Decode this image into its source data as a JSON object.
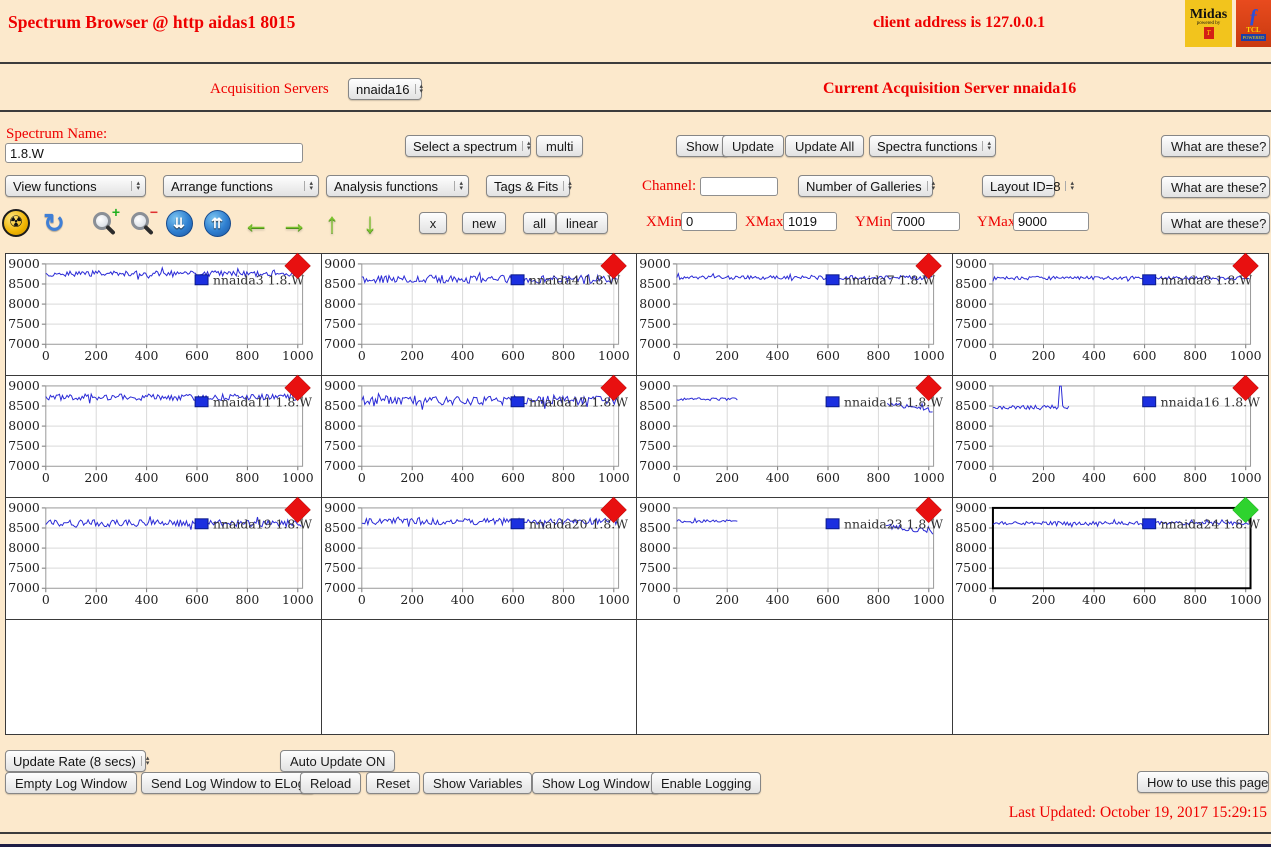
{
  "page": {
    "background": "#fce9cc",
    "accent_red": "#ee0000"
  },
  "header": {
    "title": "Spectrum Browser @ http aidas1 8015",
    "client_address": "client address is 127.0.0.1",
    "logos": {
      "midas_name": "Midas",
      "midas_sub": "powered by",
      "midas_badge": "T",
      "tcl_feather": "ƒ",
      "tcl_name": "TCL",
      "tcl_sub": "POWERED"
    }
  },
  "server_bar": {
    "label": "Acquisition Servers",
    "select_value": "nnaida16",
    "current": "Current Acquisition Server nnaida16"
  },
  "spectrum_bar": {
    "name_label": "Spectrum Name:",
    "name_value": "1.8.W",
    "select_spectrum": "Select a spectrum",
    "multi": "multi",
    "show": "Show",
    "update": "Update",
    "update_all": "Update All",
    "spectra_functions": "Spectra functions",
    "help": "What are these?"
  },
  "function_bar": {
    "view": "View functions",
    "arrange": "Arrange functions",
    "analysis": "Analysis functions",
    "tags": "Tags & Fits",
    "channel_label": "Channel:",
    "channel_value": "",
    "galleries": "Number of Galleries",
    "layout": "Layout ID=8",
    "help": "What are these?"
  },
  "toolbar": {
    "icons": [
      {
        "name": "radiation-icon",
        "glyph": "☢"
      },
      {
        "name": "refresh-icon",
        "glyph": "↻"
      },
      {
        "name": "zoom-in-icon",
        "badge": "+"
      },
      {
        "name": "zoom-out-icon",
        "badge": "−"
      },
      {
        "name": "scroll-down-icon",
        "glyph": "⇊"
      },
      {
        "name": "scroll-up-icon",
        "glyph": "⇈"
      },
      {
        "name": "arrow-left-icon",
        "glyph": "←"
      },
      {
        "name": "arrow-right-icon",
        "glyph": "→"
      },
      {
        "name": "arrow-up-icon",
        "glyph": "↑"
      },
      {
        "name": "arrow-down-icon",
        "glyph": "↓"
      }
    ],
    "x": "x",
    "new": "new",
    "all": "all",
    "linear": "linear",
    "xmin_label": "XMin",
    "xmin": "0",
    "xmax_label": "XMax",
    "xmax": "1019",
    "ymin_label": "YMin",
    "ymin": "7000",
    "ymax_label": "YMax",
    "ymax": "9000",
    "help": "What are these?"
  },
  "chart_data": {
    "type": "line",
    "xlim": [
      0,
      1019
    ],
    "ylim": [
      7000,
      9000
    ],
    "xticks": [
      0,
      200,
      400,
      600,
      800,
      1000
    ],
    "yticks": [
      9000,
      8500,
      8000,
      7500,
      7000
    ],
    "grid": true,
    "line_color": "#2b2bd6",
    "legend_marker_fill": "#1b2fe0",
    "legend_marker_stroke": "#0b1a8a",
    "diamond_red": "#e81010",
    "diamond_green": "#2ed32e",
    "plots": [
      {
        "name": "nnaida3 1.8.W",
        "status": "red",
        "selected": false,
        "seed": 3,
        "segments": [
          {
            "x0": 0,
            "x1": 1019,
            "base": 8760,
            "amp": 70
          }
        ]
      },
      {
        "name": "nnaida4 1.8.W",
        "status": "red",
        "selected": false,
        "seed": 4,
        "segments": [
          {
            "x0": 0,
            "x1": 1019,
            "base": 8620,
            "amp": 100
          }
        ]
      },
      {
        "name": "nnaida7 1.8.W",
        "status": "red",
        "selected": false,
        "seed": 7,
        "segments": [
          {
            "x0": 0,
            "x1": 1019,
            "base": 8660,
            "amp": 50
          }
        ]
      },
      {
        "name": "nnaida8 1.8.W",
        "status": "red",
        "selected": false,
        "seed": 8,
        "segments": [
          {
            "x0": 0,
            "x1": 1019,
            "base": 8650,
            "amp": 45
          }
        ]
      },
      {
        "name": "nnaida11 1.8.W",
        "status": "red",
        "selected": false,
        "seed": 11,
        "segments": [
          {
            "x0": 0,
            "x1": 1019,
            "base": 8720,
            "amp": 80
          }
        ]
      },
      {
        "name": "nnaida12 1.8.W",
        "status": "red",
        "selected": false,
        "seed": 12,
        "segments": [
          {
            "x0": 0,
            "x1": 1019,
            "base": 8640,
            "amp": 120
          }
        ]
      },
      {
        "name": "nnaida15 1.8.W",
        "status": "red",
        "selected": false,
        "seed": 15,
        "segments": [
          {
            "x0": 0,
            "x1": 245,
            "base": 8670,
            "amp": 35
          },
          {
            "x0": 835,
            "x1": 1019,
            "base": 8560,
            "amp": 60,
            "drift": -180
          }
        ]
      },
      {
        "name": "nnaida16 1.8.W",
        "status": "red",
        "selected": false,
        "seed": 16,
        "segments": [
          {
            "x0": 0,
            "x1": 300,
            "base": 8460,
            "amp": 60,
            "spikes": [
              [
                268,
                9000
              ]
            ]
          }
        ]
      },
      {
        "name": "nnaida19 1.8.W",
        "status": "red",
        "selected": false,
        "seed": 19,
        "segments": [
          {
            "x0": 0,
            "x1": 1019,
            "base": 8620,
            "amp": 85
          }
        ]
      },
      {
        "name": "nnaida20 1.8.W",
        "status": "red",
        "selected": false,
        "seed": 20,
        "segments": [
          {
            "x0": 0,
            "x1": 1019,
            "base": 8660,
            "amp": 80
          }
        ]
      },
      {
        "name": "nnaida23 1.8.W",
        "status": "red",
        "selected": false,
        "seed": 23,
        "segments": [
          {
            "x0": 0,
            "x1": 245,
            "base": 8670,
            "amp": 35
          },
          {
            "x0": 830,
            "x1": 1019,
            "base": 8550,
            "amp": 60,
            "drift": -150
          }
        ]
      },
      {
        "name": "nnaida24 1.8.W",
        "status": "green",
        "selected": true,
        "seed": 24,
        "segments": [
          {
            "x0": 0,
            "x1": 1019,
            "base": 8620,
            "amp": 45
          }
        ]
      }
    ],
    "empty_cells": 4
  },
  "footer": {
    "update_rate": "Update Rate (8 secs)",
    "auto_update": "Auto Update ON",
    "empty_log": "Empty Log Window",
    "send_log": "Send Log Window to ELog",
    "reload": "Reload",
    "reset": "Reset",
    "show_variables": "Show Variables",
    "show_log": "Show Log Window",
    "enable_logging": "Enable Logging",
    "help": "How to use this page",
    "last_updated": "Last Updated: October 19, 2017 15:29:15"
  }
}
